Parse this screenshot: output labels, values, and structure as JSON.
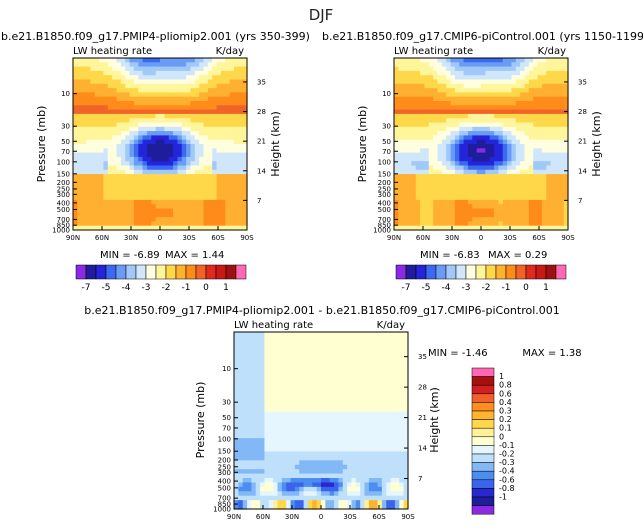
{
  "page_title": "DJF",
  "colors": {
    "top_palette": [
      "#8a2be2",
      "#1e1e9c",
      "#2424d8",
      "#3a6af0",
      "#6a9cf5",
      "#a0c8f8",
      "#cfe6fb",
      "#ffffe0",
      "#fff59a",
      "#ffd84a",
      "#ffb030",
      "#ff8c1a",
      "#f0642a",
      "#e02a20",
      "#c81818",
      "#a01010",
      "#ff66b4"
    ],
    "diff_palette": [
      "#8a2be2",
      "#1e1e9c",
      "#2828d0",
      "#3a64ec",
      "#4c8ef0",
      "#82b8f6",
      "#bfe0fb",
      "#e6f6ff",
      "#ffffd2",
      "#fff19a",
      "#ffd74a",
      "#ffb32f",
      "#ff8e1c",
      "#f0602a",
      "#d22020",
      "#a81010",
      "#ff66b4"
    ]
  },
  "chart_data": [
    {
      "type": "heatmap",
      "title": "b.e21.B1850.f09_g17.PMIP4-pliomip2.001 (yrs 350-399)",
      "left_label": "LW heating rate",
      "right_label": "K/day",
      "xlabel": "",
      "ylabel": "Pressure (mb)",
      "y2label": "Height (km)",
      "x_ticks": [
        "90N",
        "60N",
        "30N",
        "0",
        "30S",
        "60S",
        "90S"
      ],
      "y_ticks": [
        "1000",
        "850",
        "700",
        "500",
        "400",
        "300",
        "250",
        "200",
        "150",
        "100",
        "70",
        "50",
        "30",
        "10"
      ],
      "y_tick_values": [
        1000,
        850,
        700,
        500,
        400,
        300,
        250,
        200,
        150,
        100,
        70,
        50,
        30,
        10
      ],
      "height_ticks": [
        "7",
        "14",
        "21",
        "28",
        "35"
      ],
      "height_tick_values": [
        7,
        14,
        21,
        28,
        35
      ],
      "ylim_mb": [
        1000,
        3
      ],
      "min_label": "MIN = -6.89",
      "max_label": "MAX = 1.44",
      "min": -6.89,
      "max": 1.44
    },
    {
      "type": "heatmap",
      "title": "b.e21.B1850.f09_g17.CMIP6-piControl.001 (yrs 1150-1199)",
      "left_label": "LW heating rate",
      "right_label": "K/day",
      "xlabel": "",
      "ylabel": "Pressure (mb)",
      "y2label": "Height (km)",
      "x_ticks": [
        "90N",
        "60N",
        "30N",
        "0",
        "30S",
        "60S",
        "90S"
      ],
      "y_ticks": [
        "1000",
        "850",
        "700",
        "500",
        "400",
        "300",
        "250",
        "200",
        "150",
        "100",
        "70",
        "50",
        "30",
        "10"
      ],
      "y_tick_values": [
        1000,
        850,
        700,
        500,
        400,
        300,
        250,
        200,
        150,
        100,
        70,
        50,
        30,
        10
      ],
      "height_ticks": [
        "7",
        "14",
        "21",
        "28",
        "35"
      ],
      "height_tick_values": [
        7,
        14,
        21,
        28,
        35
      ],
      "ylim_mb": [
        1000,
        3
      ],
      "min_label": "MIN = -6.83",
      "max_label": "MAX = 0.29",
      "min": -6.83,
      "max": 0.29
    },
    {
      "type": "heatmap",
      "title": "b.e21.B1850.f09_g17.PMIP4-pliomip2.001 - b.e21.B1850.f09_g17.CMIP6-piControl.001",
      "left_label": "LW heating rate",
      "right_label": "K/day",
      "xlabel": "",
      "ylabel": "Pressure (mb)",
      "y2label": "Height (km)",
      "x_ticks": [
        "90N",
        "60N",
        "30N",
        "0",
        "30S",
        "60S",
        "90S"
      ],
      "y_ticks": [
        "1000",
        "850",
        "700",
        "500",
        "400",
        "300",
        "250",
        "200",
        "150",
        "100",
        "70",
        "50",
        "30",
        "10"
      ],
      "y_tick_values": [
        1000,
        850,
        700,
        500,
        400,
        300,
        250,
        200,
        150,
        100,
        70,
        50,
        30,
        10
      ],
      "height_ticks": [
        "7",
        "14",
        "21",
        "28",
        "35"
      ],
      "height_tick_values": [
        7,
        14,
        21,
        28,
        35
      ],
      "ylim_mb": [
        1000,
        3
      ],
      "min_label": "MIN = -1.46",
      "max_label": "MAX = 1.38",
      "min": -1.46,
      "max": 1.38
    }
  ],
  "colorbar_top": {
    "labels": [
      "-7",
      "-5",
      "-4",
      "-3",
      "-2",
      "-1",
      "0",
      "1"
    ],
    "label_box_index": [
      1,
      3,
      5,
      7,
      9,
      11,
      13,
      15
    ]
  },
  "colorbar_diff": {
    "labels": [
      "1",
      "0.8",
      "0.6",
      "0.4",
      "0.3",
      "0.2",
      "0.1",
      "0",
      "-0.1",
      "-0.2",
      "-0.3",
      "-0.4",
      "-0.6",
      "-0.8",
      "-1"
    ]
  }
}
